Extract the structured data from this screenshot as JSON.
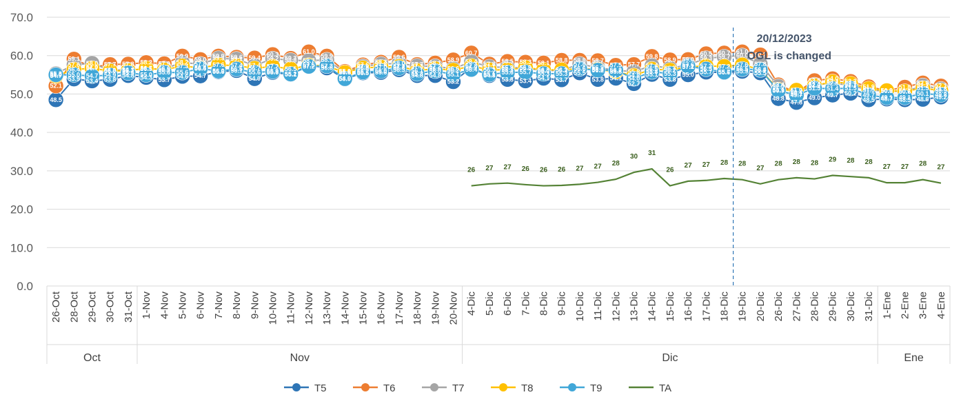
{
  "chart_data": {
    "type": "line",
    "title": "",
    "xlabel": "",
    "ylabel": "",
    "ylim": [
      0,
      70
    ],
    "yticks": [
      "0.0",
      "10.0",
      "20.0",
      "30.0",
      "40.0",
      "50.0",
      "60.0",
      "70.0"
    ],
    "grid": true,
    "legend_position": "bottom",
    "categories": [
      "26-Oct",
      "28-Oct",
      "29-Oct",
      "30-Oct",
      "31-Oct",
      "1-Nov",
      "4-Nov",
      "5-Nov",
      "6-Nov",
      "7-Nov",
      "8-Nov",
      "9-Nov",
      "10-Nov",
      "11-Nov",
      "12-Nov",
      "13-Nov",
      "14-Nov",
      "15-Nov",
      "16-Nov",
      "17-Nov",
      "18-Nov",
      "19-Nov",
      "20-Nov",
      "4-Dic",
      "5-Dic",
      "6-Dic",
      "7-Dic",
      "8-Dic",
      "9-Dic",
      "10-Dic",
      "11-Dic",
      "12-Dic",
      "13-Dic",
      "14-Dic",
      "15-Dic",
      "16-Dic",
      "17-Dic",
      "18-Dic",
      "19-Dic",
      "20-Dic",
      "26-Dic",
      "27-Dic",
      "28-Dic",
      "29-Dic",
      "30-Dic",
      "31-Dic",
      "1-Ene",
      "2-Ene",
      "3-Ene",
      "4-Ene"
    ],
    "month_groups": [
      {
        "label": "Oct",
        "start": 0,
        "end": 4
      },
      {
        "label": "Nov",
        "start": 5,
        "end": 22
      },
      {
        "label": "Dic",
        "start": 23,
        "end": 45
      },
      {
        "label": "Ene",
        "start": 46,
        "end": 49
      }
    ],
    "series": [
      {
        "name": "T5",
        "color": "#2e75b6",
        "values": [
          48.5,
          53.9,
          53.4,
          53.8,
          54.8,
          54.3,
          53.7,
          54.6,
          54.7,
          55.8,
          56.1,
          54.0,
          55.6,
          55.1,
          57.5,
          56.8,
          53.9,
          55.5,
          55.6,
          56.3,
          54.8,
          54.8,
          53.2,
          56.9,
          54.8,
          53.8,
          53.4,
          54.1,
          53.7,
          55.5,
          53.8,
          54.1,
          52.7,
          55.1,
          53.8,
          55.0,
          55.7,
          55.6,
          55.9,
          55.5,
          48.8,
          47.8,
          49.0,
          49.7,
          50.2,
          48.5,
          48.7,
          48.5,
          48.6,
          49.2
        ]
      },
      {
        "name": "T6",
        "color": "#ed7d31",
        "values": [
          52.1,
          59.1,
          57.0,
          57.7,
          57.8,
          58.2,
          57.9,
          59.9,
          59.0,
          59.9,
          59.6,
          59.4,
          60.3,
          59.3,
          61.0,
          59.9,
          55.9,
          57.6,
          58.3,
          59.6,
          57.7,
          58.1,
          58.9,
          60.7,
          57.8,
          58.5,
          58.3,
          58.1,
          58.8,
          58.8,
          58.7,
          57.5,
          57.7,
          59.8,
          58.9,
          59.0,
          60.5,
          60.7,
          61.0,
          60.2,
          52.4,
          50.4,
          53.5,
          54.0,
          53.3,
          51.9,
          50.9,
          51.8,
          52.9,
          52.1
        ]
      },
      {
        "name": "T7",
        "color": "#a5a5a5",
        "values": [
          55.3,
          57.6,
          58.0,
          56.2,
          56.3,
          56.5,
          56.6,
          58.2,
          57.8,
          59.3,
          59.1,
          57.4,
          59.2,
          58.8,
          58.7,
          58.9,
          55.6,
          57.2,
          57.8,
          58.0,
          57.3,
          57.2,
          56.6,
          58.4,
          57.1,
          56.9,
          56.8,
          56.0,
          56.2,
          57.8,
          56.9,
          56.2,
          55.8,
          57.4,
          56.7,
          57.6,
          59.3,
          59.7,
          60.0,
          57.8,
          52.0,
          50.1,
          52.4,
          52.8,
          52.3,
          51.0,
          50.8,
          50.6,
          52.2,
          51.3
        ]
      },
      {
        "name": "T8",
        "color": "#ffc000",
        "values": [
          54.7,
          56.4,
          56.7,
          56.0,
          56.1,
          56.7,
          56.3,
          57.3,
          56.8,
          57.6,
          57.4,
          56.7,
          57.2,
          56.5,
          57.5,
          57.3,
          55.6,
          56.8,
          57.0,
          57.2,
          56.1,
          56.6,
          56.2,
          57.3,
          56.3,
          56.3,
          56.9,
          56.3,
          56.3,
          56.6,
          56.4,
          55.8,
          54.8,
          56.5,
          56.2,
          57.1,
          57.3,
          57.2,
          57.6,
          56.4,
          51.1,
          51.0,
          52.2,
          53.2,
          52.7,
          51.4,
          50.9,
          50.7,
          51.5,
          50.9
        ]
      },
      {
        "name": "T9",
        "color": "#41a7d8",
        "values": [
          55.0,
          55.0,
          54.7,
          54.9,
          55.5,
          55.0,
          55.6,
          55.6,
          56.6,
          56.0,
          56.5,
          55.6,
          55.9,
          55.2,
          57.2,
          57.3,
          54.0,
          55.7,
          56.0,
          56.8,
          55.3,
          56.0,
          55.1,
          56.4,
          55.1,
          55.6,
          55.7,
          55.3,
          55.3,
          56.6,
          56.2,
          56.2,
          54.0,
          55.8,
          55.3,
          57.2,
          56.5,
          55.7,
          56.5,
          56.3,
          50.9,
          49.7,
          51.5,
          51.4,
          51.5,
          49.7,
          49.1,
          49.1,
          50.1,
          49.8
        ]
      },
      {
        "name": "TA",
        "color": "#548235",
        "values": [
          null,
          null,
          null,
          null,
          null,
          null,
          null,
          null,
          null,
          null,
          null,
          null,
          null,
          null,
          null,
          null,
          null,
          null,
          null,
          null,
          null,
          null,
          null,
          26.1,
          26.6,
          26.8,
          26.4,
          26.1,
          26.2,
          26.5,
          27.0,
          27.8,
          29.6,
          30.5,
          26.1,
          27.3,
          27.5,
          28.0,
          27.7,
          26.6,
          27.7,
          28.2,
          27.9,
          28.8,
          28.5,
          28.2,
          26.9,
          26.9,
          27.7,
          26.8
        ]
      }
    ],
    "ta_labels": [
      "26",
      "27",
      "27",
      "26",
      "26",
      "26",
      "27",
      "27",
      "28",
      "30",
      "31",
      "26",
      "27",
      "27",
      "28",
      "28",
      "27",
      "28",
      "28",
      "28",
      "29",
      "28",
      "28",
      "27",
      "27",
      "28",
      "27"
    ],
    "label_series": "T6",
    "annotation": {
      "date": "20/12/2023",
      "text": "OGL is changed",
      "after_category": "18-Dic"
    }
  }
}
